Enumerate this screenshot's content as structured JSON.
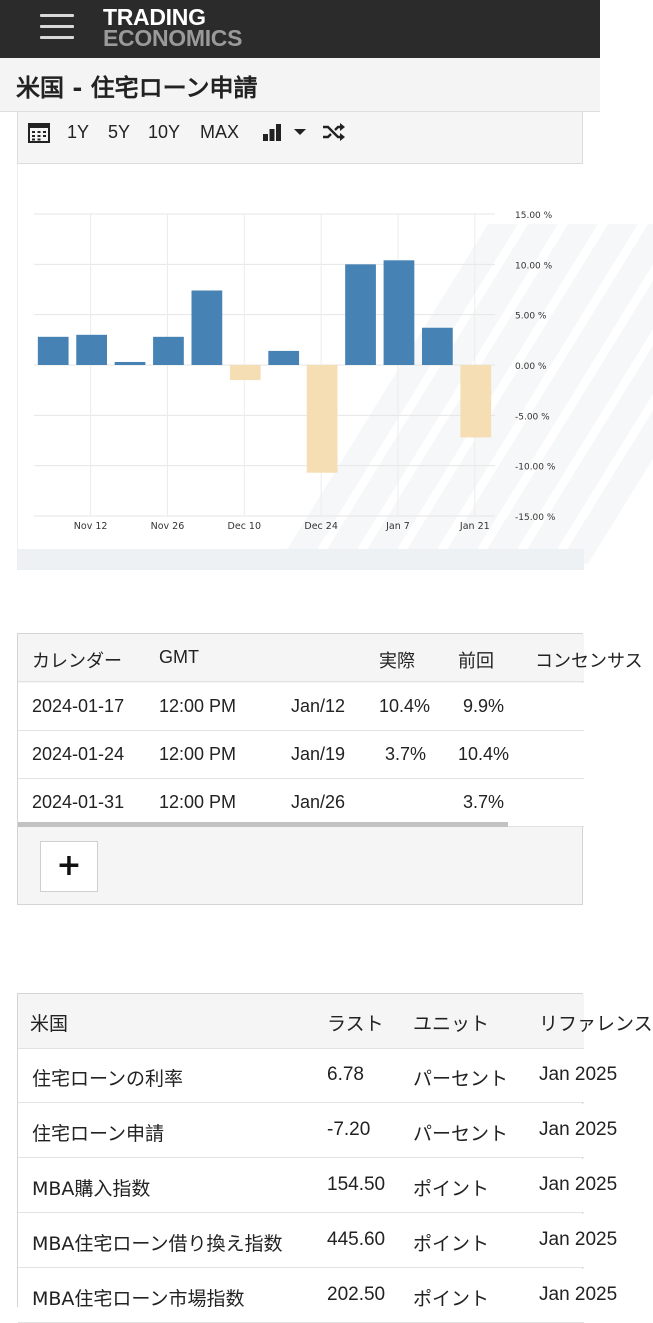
{
  "header": {
    "logo_line1": "TRADING",
    "logo_line2": "ECONOMICS",
    "page_title": "米国 - 住宅ローン申請"
  },
  "toolbar": {
    "ranges": [
      "1Y",
      "5Y",
      "10Y",
      "MAX"
    ],
    "icons": [
      "calendar-icon",
      "bar-chart-icon",
      "caret-down-icon",
      "shuffle-icon"
    ]
  },
  "chart_data": {
    "type": "bar",
    "x": [
      "2024-11-06",
      "2024-11-13",
      "2024-11-20",
      "2024-11-27",
      "2024-12-04",
      "2024-12-11",
      "2024-12-18",
      "2024-12-25",
      "2025-01-01",
      "2025-01-08",
      "2025-01-15",
      "2025-01-22"
    ],
    "values": [
      2.8,
      3.0,
      0.3,
      2.8,
      7.4,
      -1.5,
      1.4,
      -10.7,
      10.0,
      10.4,
      3.7,
      -7.2
    ],
    "x_tick_labels": [
      "Nov 12",
      "Nov 26",
      "Dec 10",
      "Dec 24",
      "Jan 7",
      "Jan 21"
    ],
    "y_tick_labels": [
      "15.00 %",
      "10.00 %",
      "5.00 %",
      "0.00 %",
      "-5.00 %",
      "-10.00 %",
      "-15.00 %"
    ],
    "ylim": [
      -15,
      15
    ],
    "positive_color": "#4682b4",
    "negative_color": "#f5deb3",
    "grid": true
  },
  "calendar_table": {
    "headers": [
      "カレンダー",
      "GMT",
      "",
      "実際",
      "前回",
      "コンセンサス"
    ],
    "rows": [
      [
        "2024-01-17",
        "12:00 PM",
        "Jan/12",
        "10.4%",
        "9.9%",
        ""
      ],
      [
        "2024-01-24",
        "12:00 PM",
        "Jan/19",
        "3.7%",
        "10.4%",
        ""
      ],
      [
        "2024-01-31",
        "12:00 PM",
        "Jan/26",
        "",
        "3.7%",
        ""
      ]
    ],
    "add_label": "+"
  },
  "related_table": {
    "headers": [
      "米国",
      "ラスト",
      "ユニット",
      "リファレンス"
    ],
    "rows": [
      [
        "住宅ローンの利率",
        "6.78",
        "パーセント",
        "Jan 2025"
      ],
      [
        "住宅ローン申請",
        "-7.20",
        "パーセント",
        "Jan 2025"
      ],
      [
        "MBA購入指数",
        "154.50",
        "ポイント",
        "Jan 2025"
      ],
      [
        "MBA住宅ローン借り換え指数",
        "445.60",
        "ポイント",
        "Jan 2025"
      ],
      [
        "MBA住宅ローン市場指数",
        "202.50",
        "ポイント",
        "Jan 2025"
      ]
    ]
  }
}
